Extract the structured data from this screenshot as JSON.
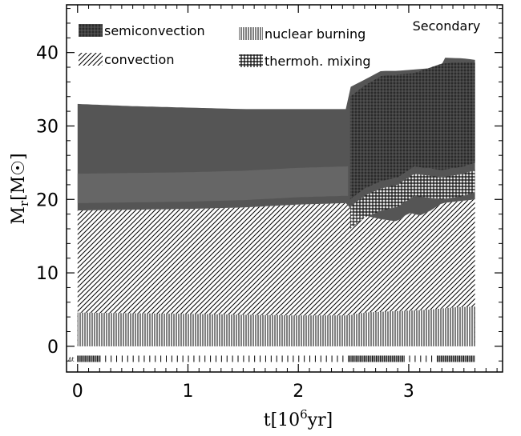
{
  "chart_data": {
    "type": "area",
    "title": "Secondary",
    "xlabel": "t[10⁶yr]",
    "ylabel": "M_r[M_☉]",
    "xlim": [
      -0.1,
      3.85
    ],
    "ylim": [
      -3.5,
      46.5
    ],
    "xticks": [
      0,
      1,
      2,
      3
    ],
    "yticks": [
      0,
      10,
      20,
      30,
      40
    ],
    "grid": false,
    "legend_position": "top",
    "legend": [
      {
        "name": "semiconvection",
        "pattern": "crosshatch-dark"
      },
      {
        "name": "nuclear burning",
        "pattern": "vertical-lines"
      },
      {
        "name": "convection",
        "pattern": "diagonal-lines"
      },
      {
        "name": "thermoh. mixing",
        "pattern": "grid"
      }
    ],
    "dt_label": "Δt",
    "colors": {
      "envelope": "#555555",
      "envelope_light": "#6a6a6a",
      "semiconvection": "#303030",
      "hatch": "#000000"
    },
    "series": {
      "stellar_mass": {
        "x": [
          0,
          0.5,
          1.0,
          1.5,
          2.0,
          2.45,
          2.47,
          2.6,
          2.75,
          2.9,
          3.05,
          3.3,
          3.32,
          3.5,
          3.6
        ],
        "y": [
          33.0,
          32.7,
          32.5,
          32.3,
          32.3,
          32.3,
          35.3,
          36.3,
          37.5,
          37.5,
          37.7,
          38.0,
          39.3,
          39.2,
          39.0
        ]
      },
      "convective_envelope_base": {
        "x": [
          0,
          0.5,
          1.0,
          1.5,
          2.0,
          2.45,
          2.5,
          2.6,
          2.75,
          2.9,
          3.0,
          3.1,
          3.2,
          3.3,
          3.6
        ],
        "y": [
          18.5,
          18.6,
          18.7,
          18.9,
          19.3,
          19.5,
          18.0,
          17.8,
          17.3,
          17.0,
          18.2,
          17.8,
          18.5,
          19.5,
          20.0
        ]
      },
      "burning_core_top": {
        "x": [
          0,
          0.5,
          1.0,
          1.5,
          2.0,
          2.45,
          2.6,
          2.9,
          3.2,
          3.4,
          3.6
        ],
        "y": [
          4.6,
          4.5,
          4.4,
          4.3,
          4.2,
          4.2,
          4.6,
          4.8,
          5.0,
          5.3,
          5.4
        ]
      },
      "semiconvection_top": {
        "x": [
          2.47,
          2.6,
          2.75,
          2.9,
          3.05,
          3.3,
          3.5,
          3.6
        ],
        "y": [
          34.0,
          35.5,
          36.8,
          37.0,
          37.2,
          38.5,
          38.7,
          38.6
        ]
      },
      "semiconvection_bottom": {
        "x": [
          2.47,
          2.6,
          2.75,
          2.9,
          3.05,
          3.3,
          3.5,
          3.6
        ],
        "y": [
          20.0,
          21.5,
          22.5,
          23.0,
          24.5,
          24.0,
          24.5,
          25.0
        ]
      }
    }
  }
}
